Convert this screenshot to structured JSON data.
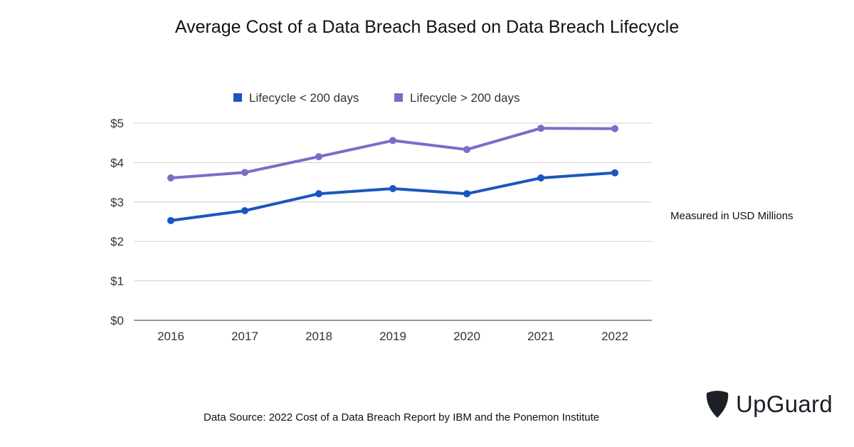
{
  "chart_data": {
    "type": "line",
    "title": "Average Cost of a Data Breach Based on Data Breach Lifecycle",
    "xlabel": "",
    "ylabel": "",
    "x": [
      "2016",
      "2017",
      "2018",
      "2019",
      "2020",
      "2021",
      "2022"
    ],
    "ylim": [
      0,
      5
    ],
    "yticks": [
      0,
      1,
      2,
      3,
      4,
      5
    ],
    "ytick_labels": [
      "$0",
      "$1",
      "$2",
      "$3",
      "$4",
      "$5"
    ],
    "grid": true,
    "legend_position": "top-center",
    "series": [
      {
        "name": "Lifecycle < 200 days",
        "color": "#1a56c1",
        "values": [
          2.53,
          2.78,
          3.21,
          3.34,
          3.21,
          3.61,
          3.74
        ]
      },
      {
        "name": "Lifecycle > 200 days",
        "color": "#7e6bc9",
        "values": [
          3.61,
          3.75,
          4.15,
          4.56,
          4.33,
          4.87,
          4.86
        ]
      }
    ],
    "annotation": "Measured in USD Millions"
  },
  "footer": {
    "source": "Data Source: 2022 Cost of a Data Breach Report by IBM and the Ponemon Institute"
  },
  "brand": {
    "name": "UpGuard",
    "logo_color": "#1c1f26"
  }
}
